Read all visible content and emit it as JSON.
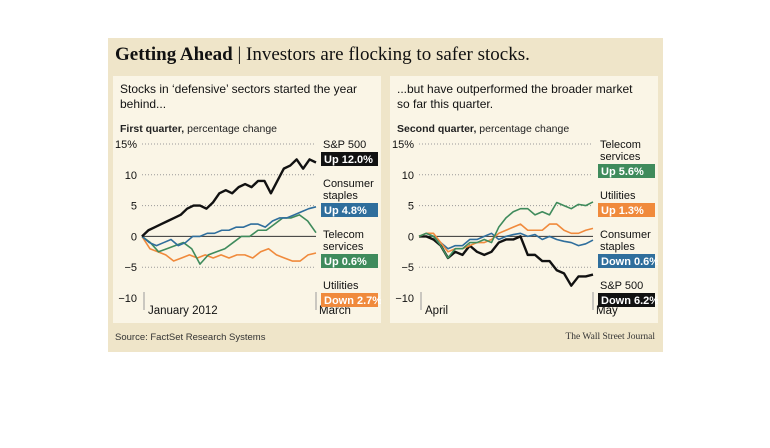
{
  "header": {
    "title_bold": "Getting Ahead",
    "title_rest": " | Investors are flocking to safer stocks."
  },
  "source": "Source: FactSet Research Systems",
  "credit": "The Wall Street Journal",
  "colors": {
    "sp500": "#111111",
    "staples": "#2f6e9c",
    "telecom": "#3f8b5c",
    "utilities": "#f08a3c"
  },
  "chart_data": [
    {
      "type": "line",
      "subtitle": "Stocks in ‘defensive’ sectors started the year behind...",
      "unit_bold": "First quarter,",
      "unit_rest": " percentage change",
      "ylim": [
        -10,
        15
      ],
      "yticks": [
        "15%",
        "10",
        "5",
        "0",
        "−5",
        "−10"
      ],
      "xticks": [
        "January 2012",
        "March"
      ],
      "grid": true,
      "series": [
        {
          "name": "S&P 500",
          "label": "Up 12.0%",
          "color": "#111111",
          "values": [
            0,
            1,
            1.5,
            2,
            2.5,
            3,
            3.5,
            4.5,
            5,
            5,
            4.5,
            5.5,
            7,
            7.5,
            7,
            8,
            8.5,
            8,
            9,
            9,
            7,
            9,
            11,
            11.5,
            12.5,
            11,
            12.5,
            12
          ]
        },
        {
          "name": "Consumer staples",
          "label": "Up 4.8%",
          "color": "#2f6e9c",
          "values": [
            0,
            -1,
            -1.5,
            -1,
            -0.5,
            -1.5,
            -1,
            0,
            0,
            0.5,
            0.5,
            1,
            1,
            1.5,
            1.5,
            2,
            2,
            1.5,
            2.5,
            3,
            3,
            3.5,
            4,
            4.5,
            4.8
          ]
        },
        {
          "name": "Telecom services",
          "label": "Up 0.6%",
          "color": "#3f8b5c",
          "values": [
            0,
            -1,
            -2.5,
            -2,
            -1.5,
            -1,
            -2,
            -4.5,
            -3,
            -2.5,
            -2,
            -1,
            0,
            0,
            1,
            1,
            2,
            3,
            3,
            3.5,
            2.5,
            0.6
          ]
        },
        {
          "name": "Utilities",
          "label": "Down 2.7%",
          "color": "#f08a3c",
          "values": [
            0,
            -2,
            -2.5,
            -3,
            -4,
            -3.5,
            -3,
            -3.5,
            -3,
            -3.5,
            -3,
            -3.5,
            -3,
            -3,
            -3.5,
            -2.5,
            -2,
            -3,
            -3.5,
            -4,
            -4,
            -3,
            -2.7
          ]
        }
      ]
    },
    {
      "type": "line",
      "subtitle": "...but have outperformed the broader market so far this quarter.",
      "unit_bold": "Second quarter,",
      "unit_rest": " percentage change",
      "ylim": [
        -10,
        15
      ],
      "yticks": [
        "15%",
        "10",
        "5",
        "0",
        "−5",
        "−10"
      ],
      "xticks": [
        "April",
        "May"
      ],
      "grid": true,
      "series": [
        {
          "name": "Telecom services",
          "label": "Up 5.6%",
          "color": "#3f8b5c",
          "values": [
            0,
            0.5,
            0,
            -1.5,
            -3.5,
            -2,
            -2,
            -1,
            -1,
            -0.5,
            -1,
            1.5,
            3,
            4,
            4.5,
            4.5,
            3.5,
            4,
            3.5,
            5.5,
            5,
            4.5,
            5.2,
            5,
            5.6
          ]
        },
        {
          "name": "Utilities",
          "label": "Up 1.3%",
          "color": "#f08a3c",
          "values": [
            0,
            0.5,
            0.5,
            -1,
            -2.5,
            -2,
            -2,
            -1.5,
            -1,
            -1,
            -0.5,
            0.5,
            1,
            1.5,
            2,
            1,
            1,
            1,
            2,
            2,
            1,
            0.5,
            0.5,
            1,
            1.3
          ]
        },
        {
          "name": "Consumer staples",
          "label": "Down 0.6%",
          "color": "#2f6e9c",
          "values": [
            0,
            0.5,
            0,
            -1,
            -2,
            -1.5,
            -1.5,
            -0.5,
            -0.5,
            0,
            0.5,
            -0.5,
            0,
            0.3,
            0.5,
            0,
            0.3,
            -0.5,
            0,
            -0.5,
            -0.8,
            -1,
            -1.5,
            -1.2,
            -0.6
          ]
        },
        {
          "name": "S&P 500",
          "label": "Down 6.2%",
          "color": "#111111",
          "values": [
            0,
            0,
            -0.5,
            -1.5,
            -3.5,
            -2.5,
            -3,
            -1.5,
            -2.5,
            -3,
            -2.5,
            -1,
            -0.5,
            -0.5,
            0,
            -3,
            -3,
            -4,
            -4,
            -5.5,
            -6,
            -8,
            -6.5,
            -6.5,
            -6.2
          ]
        }
      ]
    }
  ]
}
